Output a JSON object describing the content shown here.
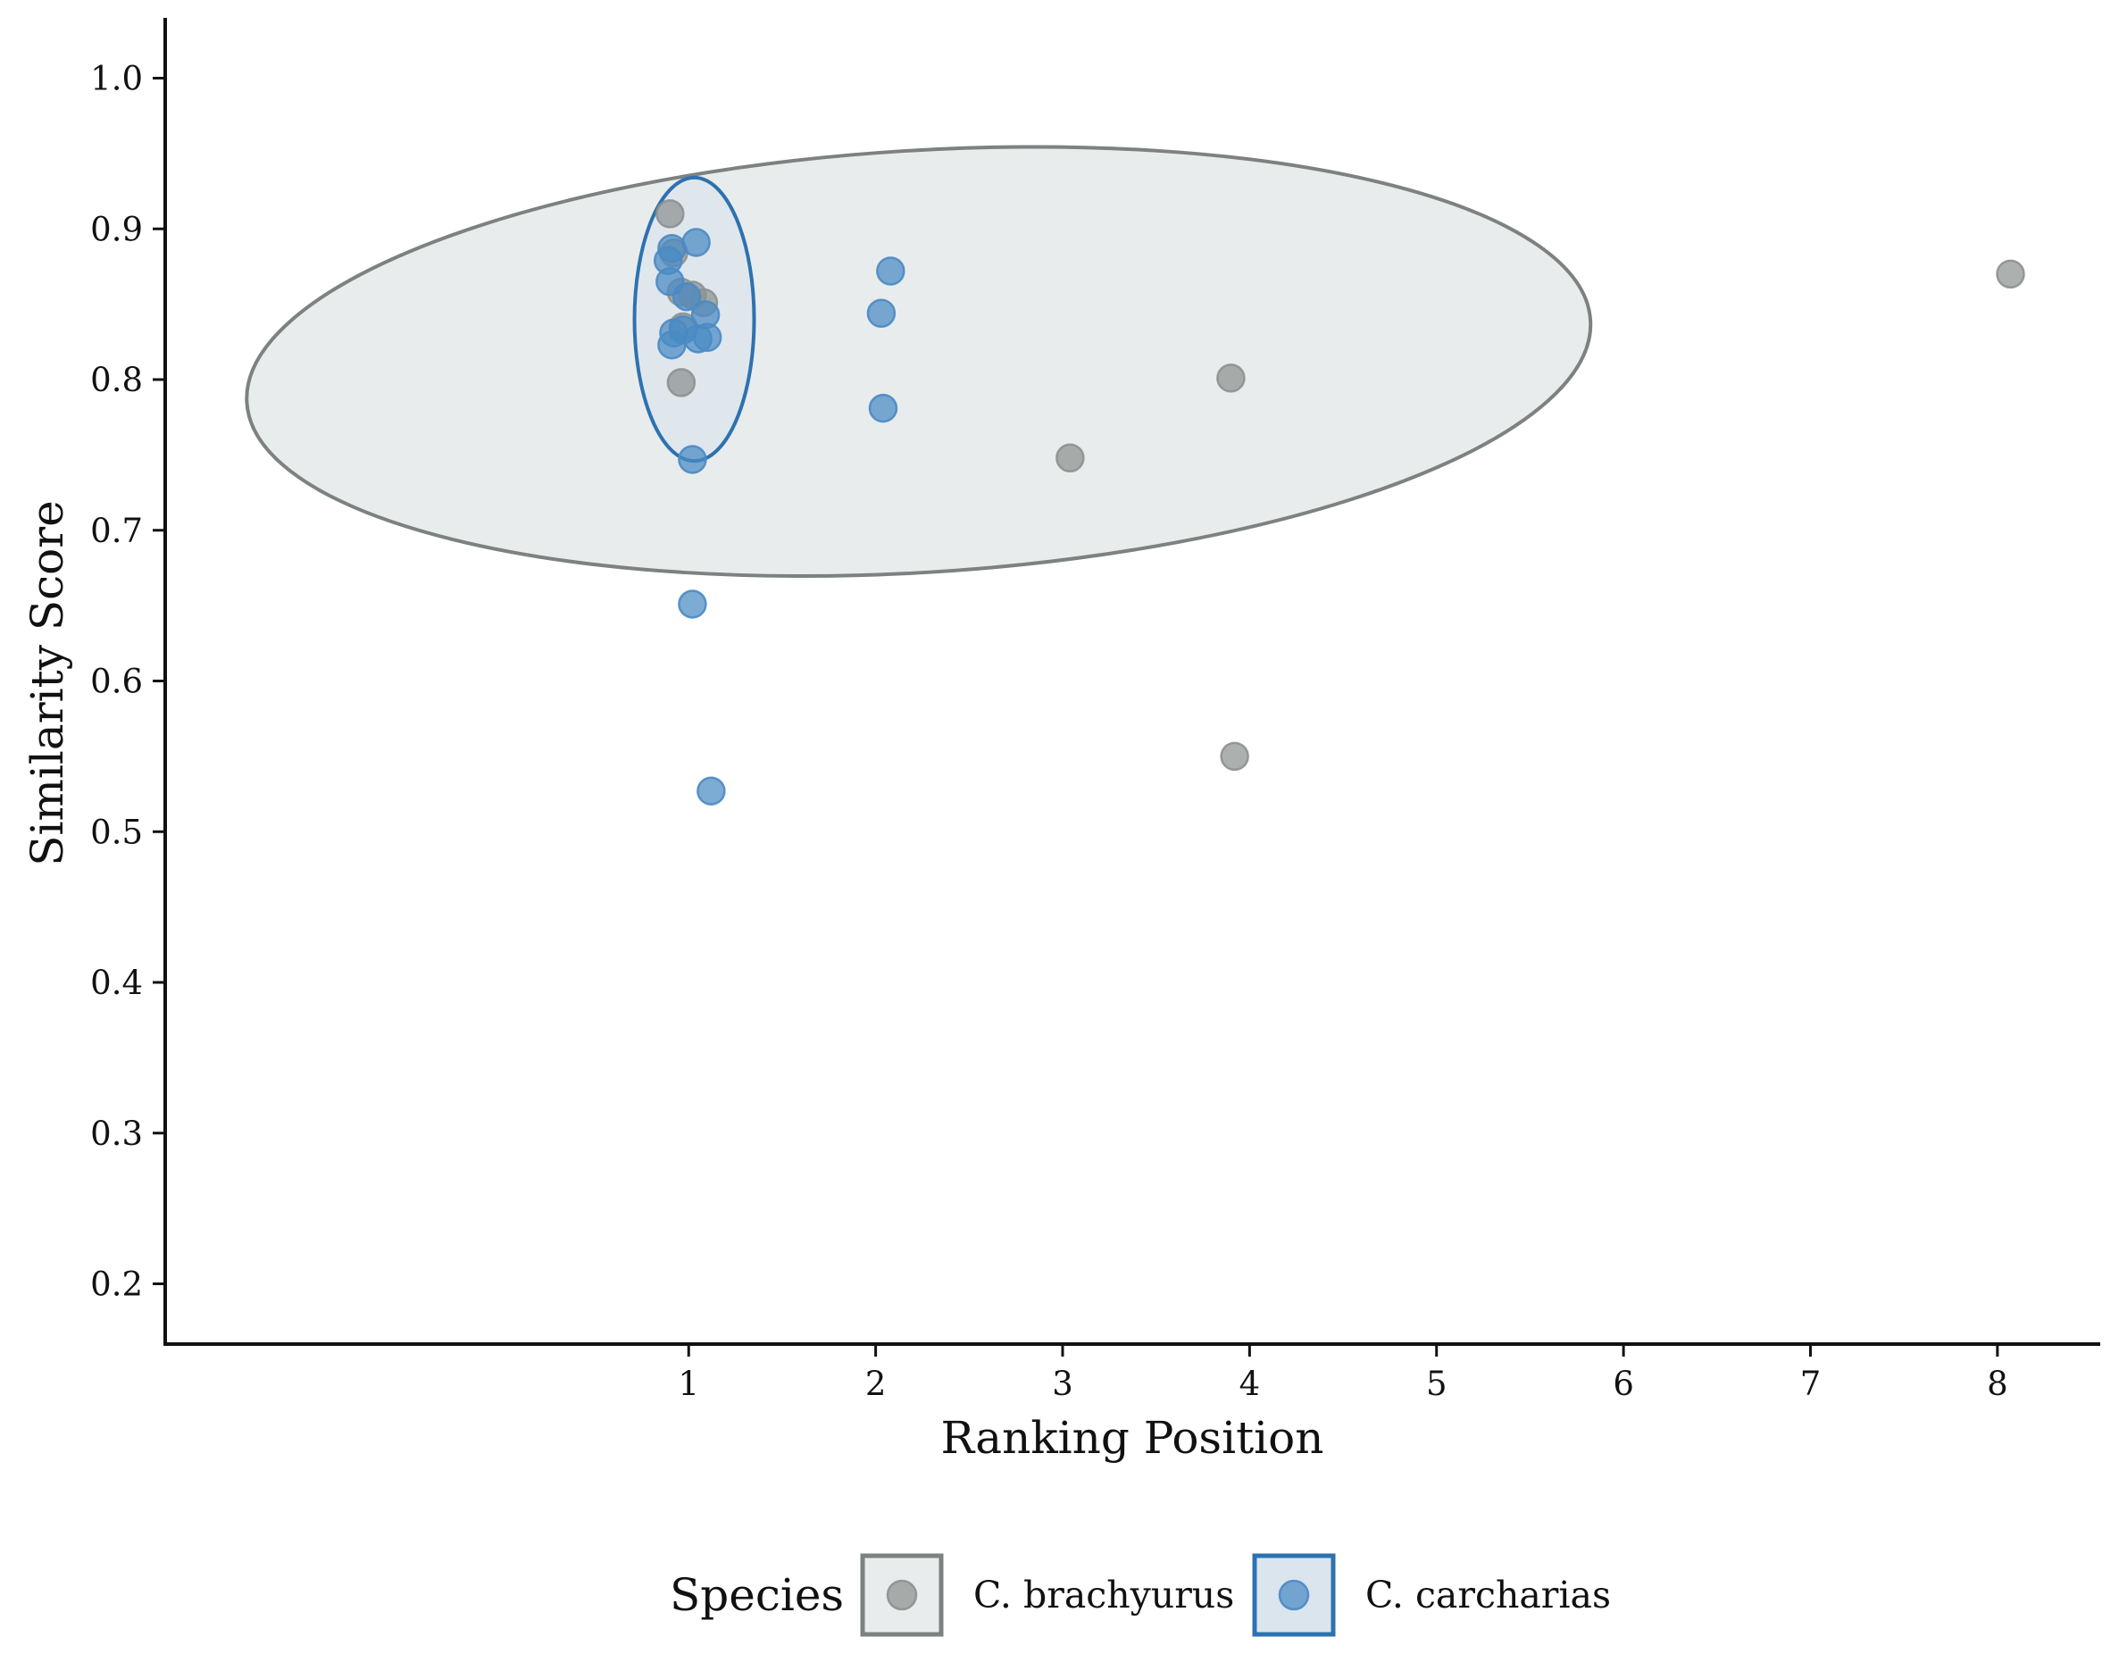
{
  "chart_data": {
    "type": "scatter",
    "xlabel": "Ranking Position",
    "ylabel": "Similarity Score",
    "x_ticks": [
      "1",
      "2",
      "3",
      "4",
      "5",
      "6",
      "7",
      "8"
    ],
    "y_ticks": [
      "0.2",
      "0.3",
      "0.4",
      "0.5",
      "0.6",
      "0.7",
      "0.8",
      "0.9",
      "1.0"
    ],
    "xlim": [
      -1.8,
      8.55
    ],
    "ylim": [
      0.16,
      1.04
    ],
    "grid": false,
    "legend": {
      "title": "Species",
      "position": "bottom",
      "entries": [
        "C. brachyurus",
        "C. carcharias"
      ]
    },
    "series": [
      {
        "name": "C. brachyurus",
        "color": "#8c9190",
        "ellipse_fill": "#e9ecec",
        "ellipse_stroke": "#7c8280",
        "points": [
          {
            "x": 0.9,
            "y": 0.91
          },
          {
            "x": 0.92,
            "y": 0.884
          },
          {
            "x": 0.96,
            "y": 0.858
          },
          {
            "x": 1.02,
            "y": 0.856
          },
          {
            "x": 1.08,
            "y": 0.851
          },
          {
            "x": 0.97,
            "y": 0.835
          },
          {
            "x": 0.96,
            "y": 0.798
          },
          {
            "x": 3.04,
            "y": 0.748
          },
          {
            "x": 3.9,
            "y": 0.801
          },
          {
            "x": 3.92,
            "y": 0.55
          },
          {
            "x": 8.07,
            "y": 0.87
          }
        ],
        "ellipse": {
          "cx": 2.23,
          "cy": 0.812,
          "rx": 3.6,
          "ry": 0.14,
          "angle_deg": -3.5
        }
      },
      {
        "name": "C. carcharias",
        "color": "#4a8ac4",
        "ellipse_fill": "#dbe5ee",
        "ellipse_stroke": "#2d72b0",
        "points": [
          {
            "x": 0.89,
            "y": 0.879
          },
          {
            "x": 0.91,
            "y": 0.887
          },
          {
            "x": 0.9,
            "y": 0.865
          },
          {
            "x": 1.04,
            "y": 0.891
          },
          {
            "x": 0.99,
            "y": 0.855
          },
          {
            "x": 1.09,
            "y": 0.843
          },
          {
            "x": 0.92,
            "y": 0.831
          },
          {
            "x": 0.91,
            "y": 0.823
          },
          {
            "x": 0.97,
            "y": 0.833
          },
          {
            "x": 1.05,
            "y": 0.827
          },
          {
            "x": 1.1,
            "y": 0.828
          },
          {
            "x": 1.02,
            "y": 0.747
          },
          {
            "x": 1.02,
            "y": 0.651
          },
          {
            "x": 1.12,
            "y": 0.527
          },
          {
            "x": 2.08,
            "y": 0.872
          },
          {
            "x": 2.03,
            "y": 0.844
          },
          {
            "x": 2.04,
            "y": 0.781
          }
        ],
        "ellipse": {
          "cx": 1.03,
          "cy": 0.84,
          "rx": 0.32,
          "ry": 0.094,
          "angle_deg": 0
        }
      }
    ]
  }
}
